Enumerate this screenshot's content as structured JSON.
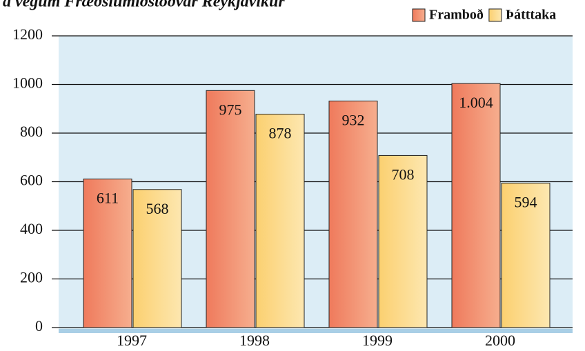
{
  "chart_data": {
    "type": "bar",
    "title": "á vegum Fræðslumiðstöðvar Reykjavíkur",
    "categories": [
      "1997",
      "1998",
      "1999",
      "2000"
    ],
    "series": [
      {
        "name": "Framboð",
        "color": "#f08a6a",
        "values": [
          611,
          975,
          932,
          1004
        ],
        "value_labels": [
          "611",
          "975",
          "932",
          "1.004"
        ]
      },
      {
        "name": "Þátttaka",
        "color": "#fbd98a",
        "values": [
          568,
          878,
          708,
          594
        ]
      }
    ],
    "ylim": [
      0,
      1200
    ],
    "yticks": [
      0,
      200,
      400,
      600,
      800,
      1000,
      1200
    ],
    "grid": true,
    "legend": "top-right"
  }
}
